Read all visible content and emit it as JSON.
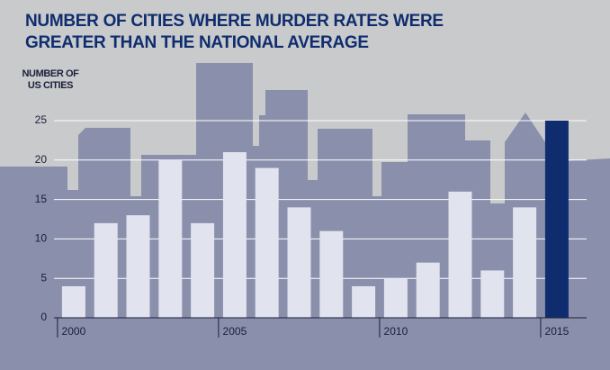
{
  "chart_data": {
    "type": "bar",
    "title": "NUMBER OF CITIES WHERE MURDER RATES WERE GREATER THAN THE NATIONAL AVERAGE",
    "y_axis_label": "NUMBER OF US CITIES",
    "categories": [
      "2000",
      null,
      null,
      null,
      null,
      "2005",
      null,
      null,
      null,
      null,
      "2010",
      null,
      null,
      null,
      null,
      "2015"
    ],
    "values": [
      4,
      12,
      13,
      20,
      12,
      21,
      19,
      14,
      11,
      4,
      5,
      7,
      16,
      6,
      14,
      25
    ],
    "colors": [
      "#e1e3ee",
      "#e1e3ee",
      "#e1e3ee",
      "#e1e3ee",
      "#e1e3ee",
      "#e1e3ee",
      "#e1e3ee",
      "#e1e3ee",
      "#e1e3ee",
      "#e1e3ee",
      "#e1e3ee",
      "#e1e3ee",
      "#e1e3ee",
      "#e1e3ee",
      "#e1e3ee",
      "#0f2d6e"
    ],
    "ylim": [
      0,
      25
    ],
    "yticks": [
      0,
      5,
      10,
      15,
      20,
      25
    ],
    "grid": true
  }
}
